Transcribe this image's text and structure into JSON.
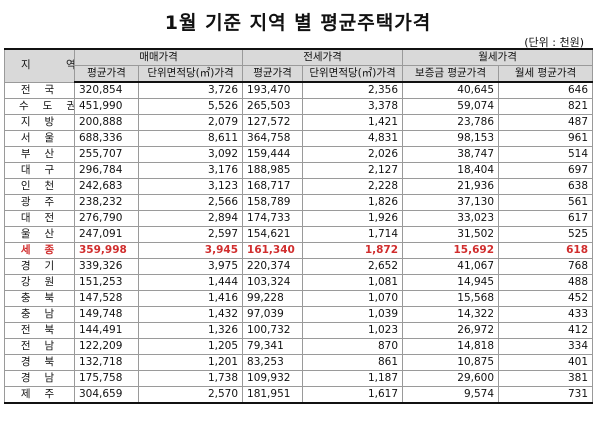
{
  "title": "1월 기준 지역 별 평균주택가격",
  "unit": "(단위 : 천원)",
  "headers": {
    "region": "지  역",
    "groups": [
      "매매가격",
      "전세가격",
      "월세가격"
    ],
    "sub": [
      "평균가격",
      "단위면적당(㎡)가격",
      "평균가격",
      "단위면적당(㎡)가격",
      "보증금 평균가격",
      "월세 평균가격"
    ]
  },
  "highlight_color": "#d12e2e",
  "rows": [
    {
      "region": "전국",
      "cells": [
        "320,854",
        "3,726",
        "193,470",
        "2,356",
        "40,645",
        "646"
      ]
    },
    {
      "region": "수도권",
      "cells": [
        "451,990",
        "5,526",
        "265,503",
        "3,378",
        "59,074",
        "821"
      ]
    },
    {
      "region": "지방",
      "cells": [
        "200,888",
        "2,079",
        "127,572",
        "1,421",
        "23,786",
        "487"
      ]
    },
    {
      "region": "서울",
      "cells": [
        "688,336",
        "8,611",
        "364,758",
        "4,831",
        "98,153",
        "961"
      ]
    },
    {
      "region": "부산",
      "cells": [
        "255,707",
        "3,092",
        "159,444",
        "2,026",
        "38,747",
        "514"
      ]
    },
    {
      "region": "대구",
      "cells": [
        "296,784",
        "3,176",
        "188,985",
        "2,127",
        "18,404",
        "697"
      ]
    },
    {
      "region": "인천",
      "cells": [
        "242,683",
        "3,123",
        "168,717",
        "2,228",
        "21,936",
        "638"
      ]
    },
    {
      "region": "광주",
      "cells": [
        "238,232",
        "2,566",
        "158,789",
        "1,826",
        "37,130",
        "561"
      ]
    },
    {
      "region": "대전",
      "cells": [
        "276,790",
        "2,894",
        "174,733",
        "1,926",
        "33,023",
        "617"
      ]
    },
    {
      "region": "울산",
      "cells": [
        "247,091",
        "2,597",
        "154,621",
        "1,714",
        "31,502",
        "525"
      ]
    },
    {
      "region": "세종",
      "highlight": true,
      "cells": [
        "359,998",
        "3,945",
        "161,340",
        "1,872",
        "15,692",
        "618"
      ]
    },
    {
      "region": "경기",
      "cells": [
        "339,326",
        "3,975",
        "220,374",
        "2,652",
        "41,067",
        "768"
      ]
    },
    {
      "region": "강원",
      "cells": [
        "151,253",
        "1,444",
        "103,324",
        "1,081",
        "14,945",
        "488"
      ]
    },
    {
      "region": "충북",
      "cells": [
        "147,528",
        "1,416",
        "99,228",
        "1,070",
        "15,568",
        "452"
      ]
    },
    {
      "region": "충남",
      "cells": [
        "149,748",
        "1,432",
        "97,039",
        "1,039",
        "14,322",
        "433"
      ]
    },
    {
      "region": "전북",
      "cells": [
        "144,491",
        "1,326",
        "100,732",
        "1,023",
        "26,972",
        "412"
      ]
    },
    {
      "region": "전남",
      "cells": [
        "122,209",
        "1,205",
        "79,341",
        "870",
        "14,818",
        "334"
      ]
    },
    {
      "region": "경북",
      "cells": [
        "132,718",
        "1,201",
        "83,253",
        "861",
        "10,875",
        "401"
      ]
    },
    {
      "region": "경남",
      "cells": [
        "175,758",
        "1,738",
        "109,932",
        "1,187",
        "29,600",
        "381"
      ]
    },
    {
      "region": "제주",
      "cells": [
        "304,659",
        "2,570",
        "181,951",
        "1,617",
        "9,574",
        "731"
      ]
    }
  ]
}
